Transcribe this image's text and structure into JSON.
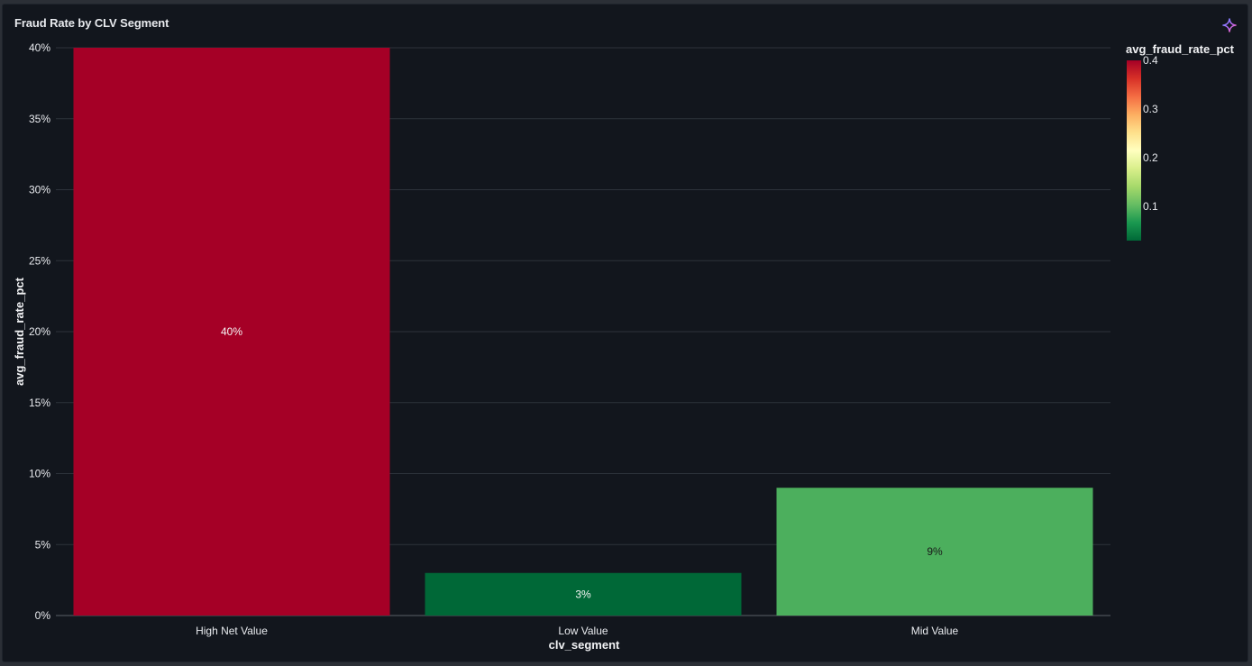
{
  "panel": {
    "title": "Fraud Rate by CLV Segment",
    "ai_icon": "sparkle-icon"
  },
  "colors": {
    "background": "#12161d",
    "grid": "#2d333b",
    "colorscale": [
      "#006837",
      "#1a9850",
      "#66bd63",
      "#a6d96a",
      "#d9ef8b",
      "#ffffbf",
      "#fee08b",
      "#fdae61",
      "#f46d43",
      "#d73027",
      "#a50026"
    ]
  },
  "chart_data": {
    "type": "bar",
    "title": "",
    "xlabel": "clv_segment",
    "ylabel": "avg_fraud_rate_pct",
    "categories": [
      "High Net Value",
      "Low Value",
      "Mid Value"
    ],
    "values": [
      0.4,
      0.03,
      0.09
    ],
    "bar_labels": [
      "40%",
      "3%",
      "9%"
    ],
    "bar_colors": [
      "#a50026",
      "#006837",
      "#4caf5d"
    ],
    "bar_label_colors": [
      "#f5f5f5",
      "#f5f5f5",
      "#1a1a1a"
    ],
    "ylim": [
      0,
      0.4
    ],
    "yticks": [
      0,
      0.05,
      0.1,
      0.15,
      0.2,
      0.25,
      0.3,
      0.35,
      0.4
    ],
    "ytick_labels": [
      "0%",
      "5%",
      "10%",
      "15%",
      "20%",
      "25%",
      "30%",
      "35%",
      "40%"
    ],
    "grid": true,
    "legend": {
      "type": "colorbar",
      "placement": "right",
      "title": "avg_fraud_rate_pct",
      "range": [
        0.03,
        0.4
      ],
      "ticks": [
        0.1,
        0.2,
        0.3,
        0.4
      ],
      "tick_labels": [
        "0.1",
        "0.2",
        "0.3",
        "0.4"
      ]
    }
  }
}
